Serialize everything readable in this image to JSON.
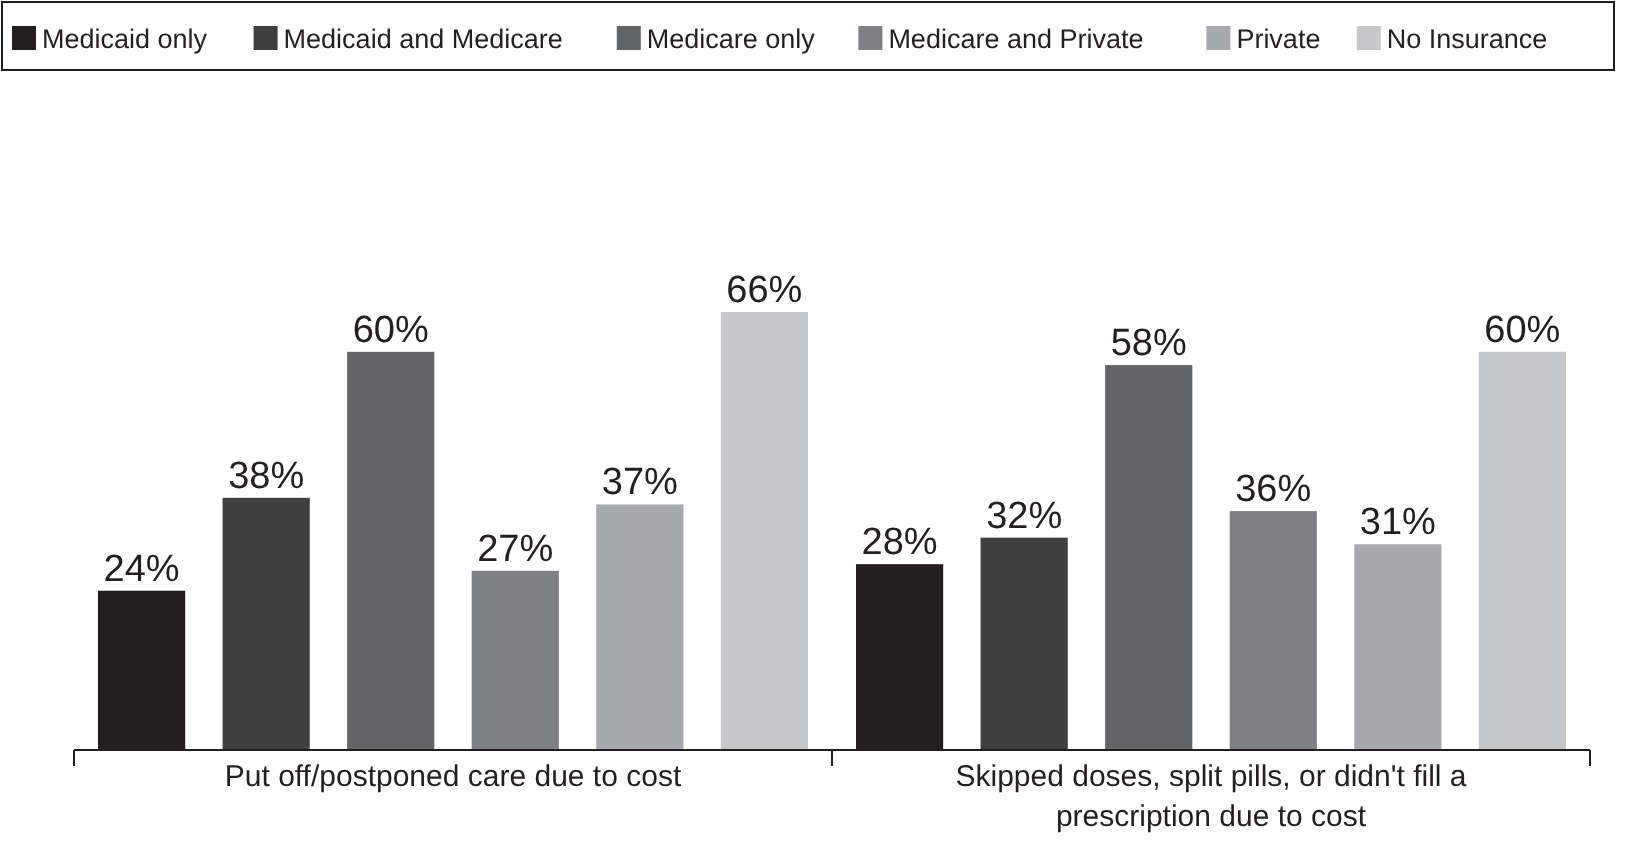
{
  "chart_data": {
    "type": "bar",
    "categories": [
      "Put off/postponed care due to cost",
      "Skipped doses, split pills, or didn't fill a prescription due to cost"
    ],
    "series": [
      {
        "name": "Medicaid only",
        "color": "#231f20",
        "values": [
          24,
          28
        ],
        "value_labels": [
          "24%",
          "28%"
        ]
      },
      {
        "name": "Medicaid and Medicare",
        "color": "#404041",
        "values": [
          38,
          32
        ],
        "value_labels": [
          "38%",
          "32%"
        ]
      },
      {
        "name": "Medicare only",
        "color": "#636466",
        "values": [
          60,
          58
        ],
        "value_labels": [
          "60%",
          "58%"
        ]
      },
      {
        "name": "Medicare and Private",
        "color": "#808184",
        "values": [
          27,
          36
        ],
        "value_labels": [
          "27%",
          "36%"
        ]
      },
      {
        "name": "Private",
        "color": "#a7a9ac",
        "values": [
          37,
          31
        ],
        "value_labels": [
          "37%",
          "31%"
        ]
      },
      {
        "name": "No Insurance",
        "color": "#c7c8ca",
        "values": [
          66,
          60
        ],
        "value_labels": [
          "66%",
          "60%"
        ]
      }
    ],
    "legend": "top"
  }
}
